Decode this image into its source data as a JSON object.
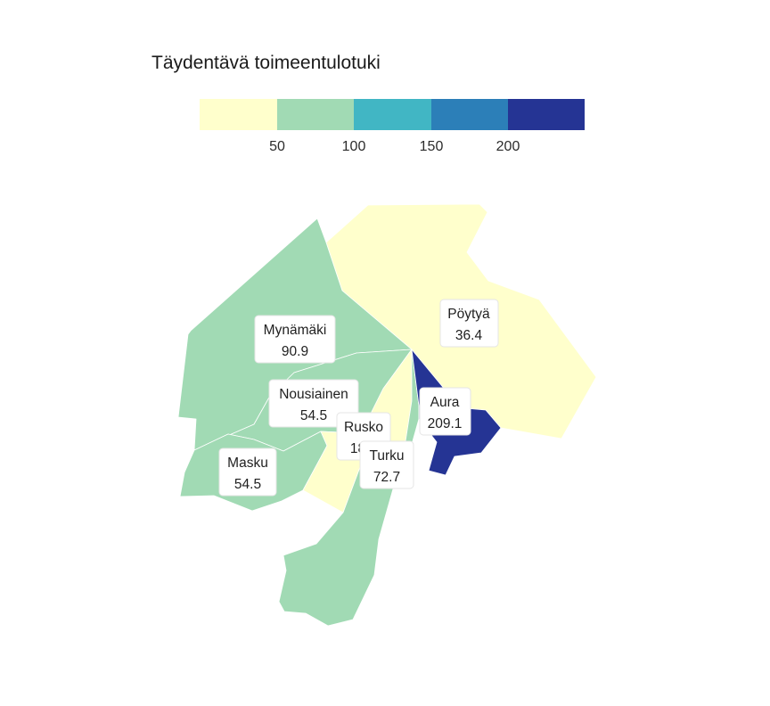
{
  "title": "Täydentävä toimeentulotuki",
  "legend": {
    "bins": [
      {
        "color": "#ffffcc"
      },
      {
        "color": "#a1dab4"
      },
      {
        "color": "#41b6c4"
      },
      {
        "color": "#2c7fb8"
      },
      {
        "color": "#253494"
      }
    ],
    "ticks": [
      "50",
      "100",
      "150",
      "200"
    ]
  },
  "regions": [
    {
      "name": "Mynämäki",
      "value": "90.9",
      "color": "#a1dab4"
    },
    {
      "name": "Pöytyä",
      "value": "36.4",
      "color": "#ffffcc"
    },
    {
      "name": "Nousiainen",
      "value": "54.5",
      "color": "#a1dab4"
    },
    {
      "name": "Aura",
      "value": "209.1",
      "color": "#253494"
    },
    {
      "name": "Rusko",
      "value": "18.2",
      "color": "#ffffcc"
    },
    {
      "name": "Turku",
      "value": "72.7",
      "color": "#a1dab4"
    },
    {
      "name": "Masku",
      "value": "54.5",
      "color": "#a1dab4"
    }
  ]
}
